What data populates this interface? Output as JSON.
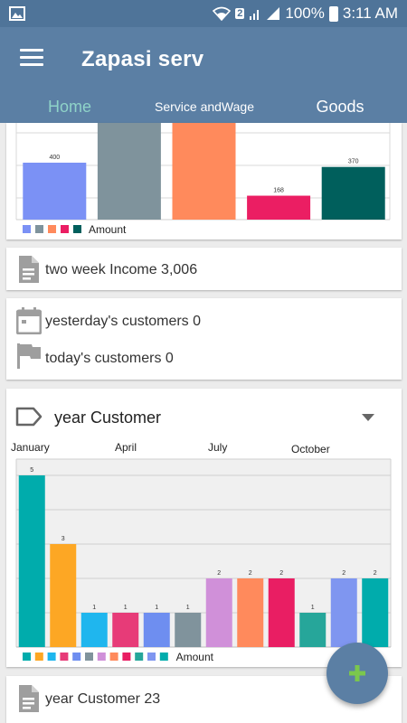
{
  "status_bar": {
    "network_badge": "2",
    "battery": "100%",
    "time": "3:11 AM",
    "icons": [
      "image-icon",
      "wifi-icon",
      "signal-icon",
      "sim-icon",
      "battery-icon"
    ]
  },
  "app_bar": {
    "title": "Zapasi serv",
    "tabs": [
      {
        "label": "Home",
        "active": true
      },
      {
        "label": "Service andWage",
        "active": false
      },
      {
        "label": "Goods",
        "active": false
      }
    ]
  },
  "colors": {
    "primary": "#5b7fa4",
    "status_bar": "#4f7499",
    "active_tab": "#8fd3c8",
    "fab_plus": "#7bc74d"
  },
  "top_chart": {
    "chart_data": {
      "type": "bar",
      "values": [
        400,
        null,
        null,
        168,
        370
      ],
      "colors": [
        "#7b91f5",
        "#7f939c",
        "#ff8a5c",
        "#eb1e63",
        "#005f5c"
      ],
      "value_labels": [
        "400",
        "",
        "",
        "168",
        "370"
      ],
      "legend": {
        "label": "Amount",
        "placement": "bottom-left"
      }
    }
  },
  "income": {
    "text": "two week Income 3,006",
    "icon": "document-icon"
  },
  "customers": {
    "yesterday": {
      "text": "yesterday's customers 0",
      "icon": "calendar-icon"
    },
    "today": {
      "text": "today's customers 0",
      "icon": "flag-icon"
    }
  },
  "year_chart": {
    "header": {
      "title": "year Customer",
      "icon": "tag-icon",
      "dropdown_icon": "dropdown-arrow-icon"
    },
    "chart_data": {
      "type": "bar",
      "month_labels": [
        "January",
        "April",
        "July",
        "October"
      ],
      "values": [
        5,
        3,
        1,
        1,
        1,
        1,
        2,
        2,
        2,
        1,
        2,
        2
      ],
      "colors": [
        "#00acac",
        "#fda724",
        "#1fb6ee",
        "#e73b78",
        "#6e8ef0",
        "#80939c",
        "#d090d9",
        "#ff8a5c",
        "#e91e63",
        "#26a69a",
        "#7f96f0",
        "#00acac"
      ],
      "ylim": [
        0,
        5.5
      ],
      "legend": {
        "label": "Amount",
        "placement": "bottom-left"
      }
    }
  },
  "bottom_card": {
    "text": "year Customer 23",
    "icon": "document-icon"
  },
  "fab": {
    "icon": "plus-icon"
  }
}
